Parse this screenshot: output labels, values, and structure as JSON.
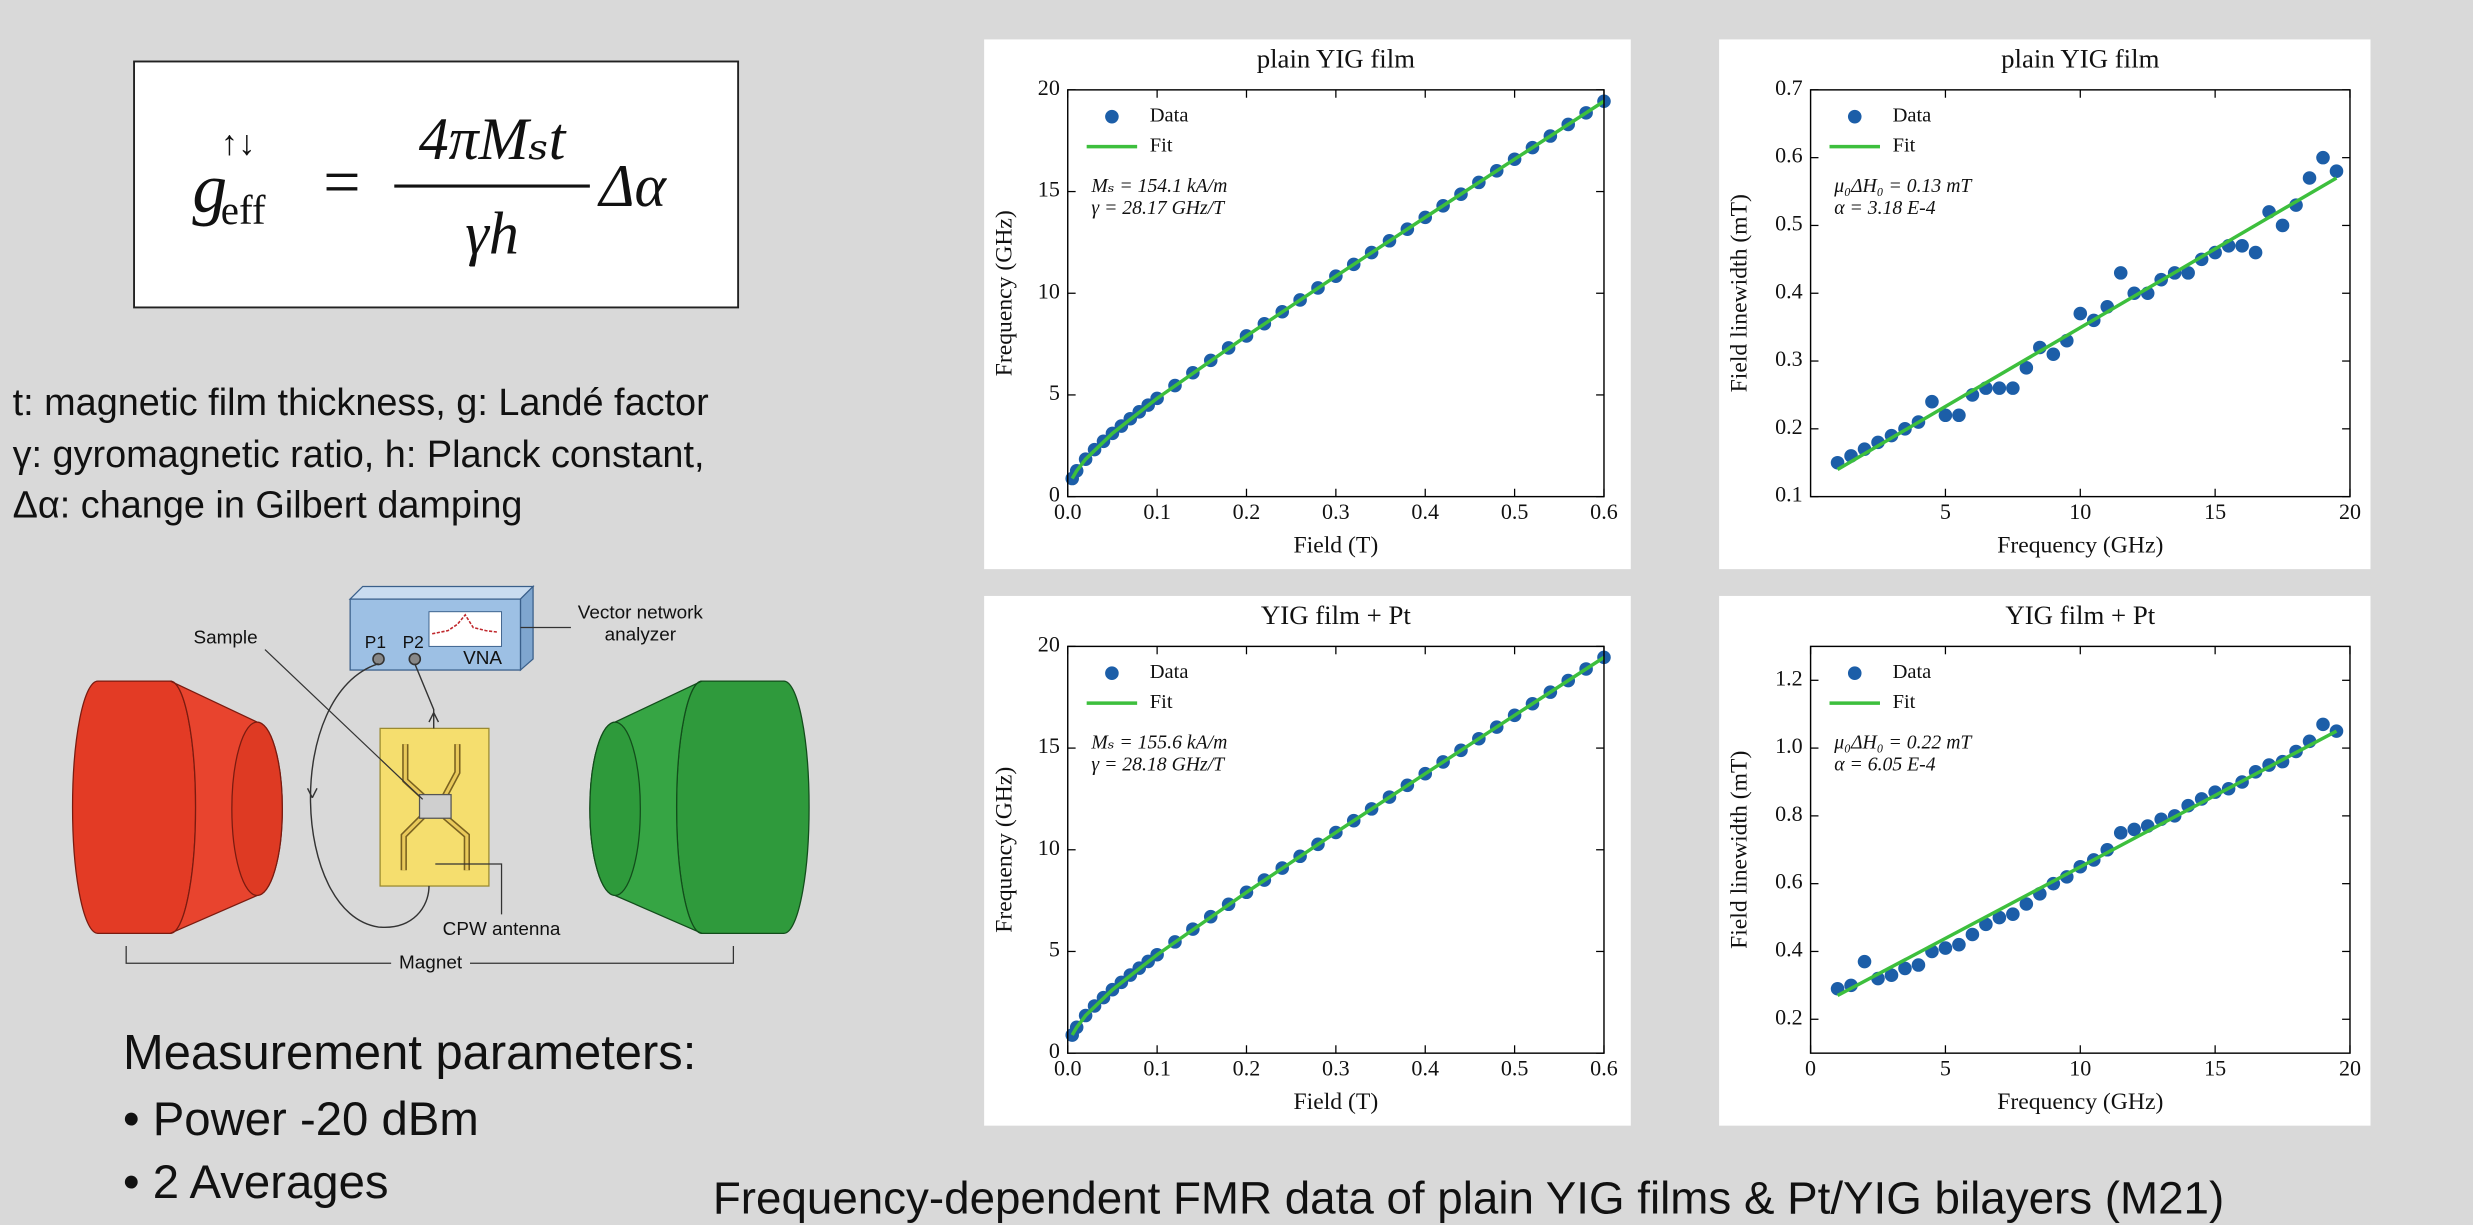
{
  "formula": {
    "lhs": "g",
    "lhs_sup": "↑↓",
    "lhs_sub": "eff",
    "equals": "=",
    "numerator": "4πMₛt",
    "denominator": "γh",
    "factor": "Δα"
  },
  "definitions": [
    "t: magnetic film thickness, g: Landé factor",
    "γ: gyromagnetic ratio, h: Planck constant,",
    "Δα: change in Gilbert damping"
  ],
  "diagram": {
    "sample": "Sample",
    "vna_label": [
      "Vector network",
      "analyzer"
    ],
    "ports": [
      "P1",
      "P2"
    ],
    "vna": "VNA",
    "antenna": "CPW antenna",
    "magnet": "Magnet"
  },
  "measurement": {
    "heading": "Measurement parameters:",
    "items": [
      "• Power -20 dBm",
      "• 2 Averages"
    ]
  },
  "caption": "Frequency-dependent FMR data of plain YIG films & Pt/YIG bilayers (M21)",
  "chart_data": [
    {
      "type": "scatter",
      "title": "plain YIG film",
      "x_label": "Field (T)",
      "y_label": "Frequency (GHz)",
      "annotations": [
        "Mₛ = 154.1 kA/m",
        "γ = 28.17 GHz/T"
      ],
      "xlim": [
        0,
        0.6
      ],
      "ylim": [
        0,
        20
      ],
      "xticks": [
        {
          "value": 0,
          "label": "0.0"
        },
        0.1,
        0.2,
        0.3,
        0.4,
        0.5,
        0.6
      ],
      "yticks": [
        0,
        5,
        10,
        15,
        20
      ],
      "series": [
        {
          "name": "Data",
          "style": "marker",
          "color": "#1c5ea8",
          "x": [
            0.005,
            0.01,
            0.02,
            0.03,
            0.04,
            0.05,
            0.06,
            0.07,
            0.08,
            0.09,
            0.1,
            0.12,
            0.14,
            0.16,
            0.18,
            0.2,
            0.22,
            0.24,
            0.26,
            0.28,
            0.3,
            0.32,
            0.34,
            0.36,
            0.38,
            0.4,
            0.42,
            0.44,
            0.46,
            0.48,
            0.5,
            0.52,
            0.54,
            0.56,
            0.58,
            0.6
          ],
          "values": [
            0.89,
            1.27,
            1.84,
            2.31,
            2.72,
            3.11,
            3.47,
            3.83,
            4.17,
            4.5,
            4.83,
            5.46,
            6.09,
            6.7,
            7.31,
            7.9,
            8.5,
            9.09,
            9.67,
            10.26,
            10.84,
            11.42,
            12.0,
            12.58,
            13.15,
            13.73,
            14.3,
            14.87,
            15.45,
            16.02,
            16.59,
            17.16,
            17.73,
            18.3,
            18.87,
            19.44
          ]
        },
        {
          "name": "Fit",
          "style": "line",
          "color": "#3dbf3d",
          "x": [
            0.005,
            0.01,
            0.02,
            0.05,
            0.1,
            0.2,
            0.3,
            0.4,
            0.5,
            0.6
          ],
          "values": [
            0.89,
            1.27,
            1.84,
            3.11,
            4.83,
            7.9,
            10.84,
            13.73,
            16.59,
            19.44
          ]
        }
      ]
    },
    {
      "type": "scatter",
      "title": "plain YIG film",
      "x_label": "Frequency (GHz)",
      "y_label": "Field linewidth (mT)",
      "annotations": [
        "μ₀ΔH₀ = 0.13 mT",
        "α = 3.18 E-4"
      ],
      "xlim": [
        0,
        20
      ],
      "ylim": [
        0.1,
        0.7
      ],
      "xticks": [
        5,
        10,
        15,
        20
      ],
      "yticks": [
        0.1,
        0.2,
        0.3,
        0.4,
        0.5,
        0.6,
        0.7
      ],
      "series": [
        {
          "name": "Data",
          "style": "marker",
          "color": "#1c5ea8",
          "x": [
            1,
            1.5,
            2,
            2.5,
            3,
            3.5,
            4,
            4.5,
            5,
            5.5,
            6,
            6.5,
            7,
            7.5,
            8,
            8.5,
            9,
            9.5,
            10,
            10.5,
            11,
            11.5,
            12,
            12.5,
            13,
            13.5,
            14,
            14.5,
            15,
            15.5,
            16,
            16.5,
            17,
            17.5,
            18,
            18.5,
            19,
            19.5
          ],
          "values": [
            0.15,
            0.16,
            0.17,
            0.18,
            0.19,
            0.2,
            0.21,
            0.24,
            0.22,
            0.22,
            0.25,
            0.26,
            0.26,
            0.26,
            0.29,
            0.32,
            0.31,
            0.33,
            0.37,
            0.36,
            0.38,
            0.43,
            0.4,
            0.4,
            0.42,
            0.43,
            0.43,
            0.45,
            0.46,
            0.47,
            0.47,
            0.46,
            0.52,
            0.5,
            0.53,
            0.57,
            0.6,
            0.58
          ]
        },
        {
          "name": "Fit",
          "style": "line",
          "color": "#3dbf3d",
          "x": [
            1,
            19.5
          ],
          "values": [
            0.14,
            0.57
          ]
        }
      ]
    },
    {
      "type": "scatter",
      "title": "YIG film + Pt",
      "x_label": "Field (T)",
      "y_label": "Frequency (GHz)",
      "annotations": [
        "Mₛ = 155.6 kA/m",
        "γ = 28.18 GHz/T"
      ],
      "xlim": [
        0,
        0.6
      ],
      "ylim": [
        0,
        20
      ],
      "xticks": [
        {
          "value": 0,
          "label": "0.0"
        },
        0.1,
        0.2,
        0.3,
        0.4,
        0.5,
        0.6
      ],
      "yticks": [
        0,
        5,
        10,
        15,
        20
      ],
      "series": [
        {
          "name": "Data",
          "style": "marker",
          "color": "#1c5ea8",
          "x": [
            0.005,
            0.01,
            0.02,
            0.03,
            0.04,
            0.05,
            0.06,
            0.07,
            0.08,
            0.09,
            0.1,
            0.12,
            0.14,
            0.16,
            0.18,
            0.2,
            0.22,
            0.24,
            0.26,
            0.28,
            0.3,
            0.32,
            0.34,
            0.36,
            0.38,
            0.4,
            0.42,
            0.44,
            0.46,
            0.48,
            0.5,
            0.52,
            0.54,
            0.56,
            0.58,
            0.6
          ],
          "values": [
            0.89,
            1.27,
            1.85,
            2.32,
            2.73,
            3.12,
            3.48,
            3.84,
            4.18,
            4.51,
            4.84,
            5.47,
            6.1,
            6.71,
            7.32,
            7.91,
            8.51,
            9.1,
            9.68,
            10.27,
            10.85,
            11.43,
            12.01,
            12.59,
            13.17,
            13.74,
            14.32,
            14.89,
            15.46,
            16.03,
            16.61,
            17.18,
            17.75,
            18.32,
            18.89,
            19.46
          ]
        },
        {
          "name": "Fit",
          "style": "line",
          "color": "#3dbf3d",
          "x": [
            0.005,
            0.01,
            0.02,
            0.05,
            0.1,
            0.2,
            0.3,
            0.4,
            0.5,
            0.6
          ],
          "values": [
            0.89,
            1.27,
            1.85,
            3.12,
            4.84,
            7.91,
            10.85,
            13.74,
            16.61,
            19.46
          ]
        }
      ]
    },
    {
      "type": "scatter",
      "title": "YIG film + Pt",
      "x_label": "Frequency (GHz)",
      "y_label": "Field linewidth (mT)",
      "annotations": [
        "μ₀ΔH₀ = 0.22 mT",
        "α = 6.05 E-4"
      ],
      "xlim": [
        0,
        20
      ],
      "ylim": [
        0.1,
        1.3
      ],
      "xticks": [
        0,
        5,
        10,
        15,
        20
      ],
      "yticks": [
        0.2,
        0.4,
        0.6,
        0.8,
        {
          "value": 1,
          "label": "1.0"
        },
        1.2
      ],
      "series": [
        {
          "name": "Data",
          "style": "marker",
          "color": "#1c5ea8",
          "x": [
            1,
            1.5,
            2,
            2.5,
            3,
            3.5,
            4,
            4.5,
            5,
            5.5,
            6,
            6.5,
            7,
            7.5,
            8,
            8.5,
            9,
            9.5,
            10,
            10.5,
            11,
            11.5,
            12,
            12.5,
            13,
            13.5,
            14,
            14.5,
            15,
            15.5,
            16,
            16.5,
            17,
            17.5,
            18,
            18.5,
            19,
            19.5
          ],
          "values": [
            0.29,
            0.3,
            0.37,
            0.32,
            0.33,
            0.35,
            0.36,
            0.4,
            0.41,
            0.42,
            0.45,
            0.48,
            0.5,
            0.51,
            0.54,
            0.57,
            0.6,
            0.62,
            0.65,
            0.67,
            0.7,
            0.75,
            0.76,
            0.77,
            0.79,
            0.8,
            0.83,
            0.85,
            0.87,
            0.88,
            0.9,
            0.93,
            0.95,
            0.96,
            0.99,
            1.02,
            1.07,
            1.05
          ]
        },
        {
          "name": "Fit",
          "style": "line",
          "color": "#3dbf3d",
          "x": [
            1,
            19.5
          ],
          "values": [
            0.27,
            1.05
          ]
        }
      ]
    }
  ]
}
